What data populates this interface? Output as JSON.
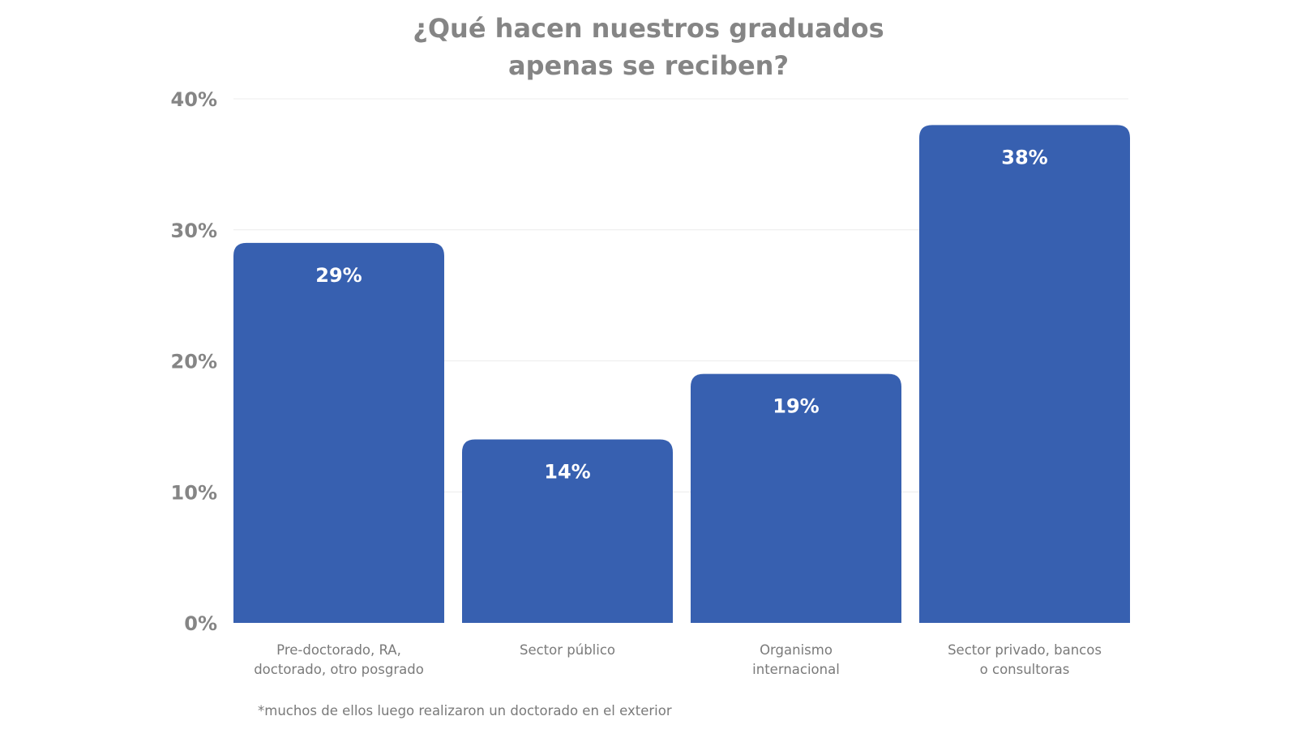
{
  "chart_data": {
    "type": "bar",
    "title_lines": [
      "¿Qué hacen nuestros graduados",
      "apenas se reciben?"
    ],
    "categories": [
      [
        "Pre-doctorado, RA,",
        "doctorado, otro posgrado"
      ],
      [
        "Sector público"
      ],
      [
        "Organismo",
        "internacional"
      ],
      [
        "Sector privado, bancos",
        "o consultoras"
      ]
    ],
    "values": [
      29,
      14,
      19,
      38
    ],
    "value_labels": [
      "29%",
      "14%",
      "19%",
      "38%"
    ],
    "y_ticks": [
      0,
      10,
      20,
      30,
      40
    ],
    "y_tick_labels": [
      "0%",
      "10%",
      "20%",
      "30%",
      "40%"
    ],
    "ylim": [
      0,
      40
    ],
    "grid": true,
    "bar_color": "#3760b0",
    "footnote": "*muchos de ellos luego realizaron un doctorado en el exterior"
  }
}
